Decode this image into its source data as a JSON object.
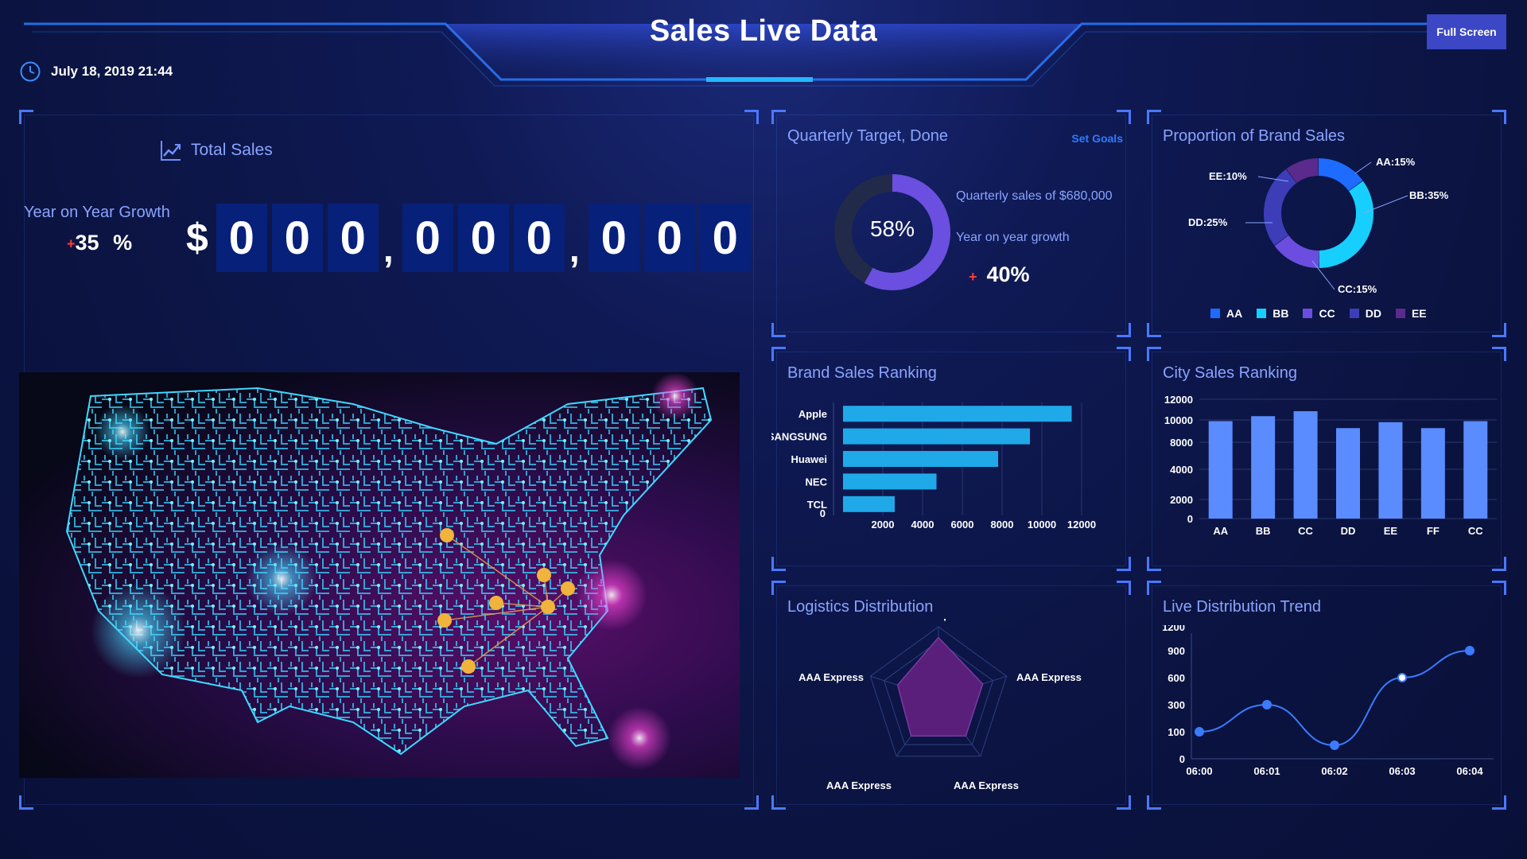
{
  "header": {
    "title": "Sales Live Data",
    "fullscreen_label": "Full Screen",
    "datetime": "July 18, 2019 21:44"
  },
  "total_sales": {
    "title": "Total Sales",
    "yoy_label": "Year on Year Growth",
    "yoy_value": "35",
    "yoy_unit": "%",
    "yoy_sign": "+",
    "currency": "$",
    "digits": [
      "0",
      "0",
      "0",
      "0",
      "0",
      "0",
      "0",
      "0",
      "0"
    ],
    "separator": ","
  },
  "quarterly": {
    "title": "Quarterly Target, Done",
    "set_goals": "Set Goals",
    "percent_label": "58%",
    "percent_value": 0.58,
    "sales_text": "Quarterly sales of $680,000",
    "growth_label": "Year on year growth",
    "growth_sign": "+",
    "growth_value": "40%",
    "colors": {
      "done": "#6a4fe0",
      "remaining": "#222a4a"
    }
  },
  "brand_proportion": {
    "title": "Proportion of Brand Sales",
    "slices": [
      {
        "name": "AA",
        "label": "AA:15%",
        "value": 15,
        "color": "#1e6bff"
      },
      {
        "name": "BB",
        "label": "BB:35%",
        "value": 35,
        "color": "#17cfff"
      },
      {
        "name": "CC",
        "label": "CC:15%",
        "value": 15,
        "color": "#6b4ee0"
      },
      {
        "name": "DD",
        "label": "DD:25%",
        "value": 25,
        "color": "#3d3db8"
      },
      {
        "name": "EE",
        "label": "EE:10%",
        "value": 10,
        "color": "#5a2a8c"
      }
    ]
  },
  "brand_ranking": {
    "title": "Brand Sales Ranking",
    "chart_data": {
      "type": "bar",
      "orientation": "horizontal",
      "categories": [
        "Apple",
        "SANGSUNG",
        "Huawei",
        "NEC",
        "TCL"
      ],
      "values": [
        11500,
        9400,
        7800,
        4700,
        2600
      ],
      "xticks": [
        "0",
        "2000",
        "4000",
        "6000",
        "8000",
        "10000",
        "12000"
      ],
      "xlim": [
        0,
        12000
      ],
      "color": "#1fa9e8"
    }
  },
  "city_ranking": {
    "title": "City Sales Ranking",
    "chart_data": {
      "type": "bar",
      "categories": [
        "AA",
        "BB",
        "CC",
        "DD",
        "EE",
        "FF",
        "CC"
      ],
      "values": [
        9800,
        10300,
        10800,
        9100,
        9700,
        9100,
        9800
      ],
      "yticks": [
        "0",
        "2000",
        "4000",
        "8000",
        "10000",
        "12000"
      ],
      "ylim": [
        0,
        12000
      ],
      "color": "#5a8cff"
    }
  },
  "logistics": {
    "title": "Logistics Distribution",
    "chart_data": {
      "type": "radar",
      "axes": [
        "AAA Express",
        "AAA Express",
        "AAA Express",
        "AAA Express",
        "AAA Express"
      ],
      "values": [
        0.85,
        0.65,
        0.65,
        0.65,
        0.6
      ],
      "color": "#5a1f7a"
    }
  },
  "trend": {
    "title": "Live Distribution Trend",
    "chart_data": {
      "type": "line",
      "x": [
        "06:00",
        "06:01",
        "06:02",
        "06:03",
        "06:04"
      ],
      "points": [
        {
          "x": 0,
          "y": 100
        },
        {
          "x": 1,
          "y": 300
        },
        {
          "x": 2,
          "y": 50
        },
        {
          "x": 3,
          "y": 600
        },
        {
          "x": 4,
          "y": 900
        }
      ],
      "yticks": [
        "0",
        "100",
        "300",
        "600",
        "900",
        "1200"
      ],
      "color": "#3b7bff"
    }
  }
}
